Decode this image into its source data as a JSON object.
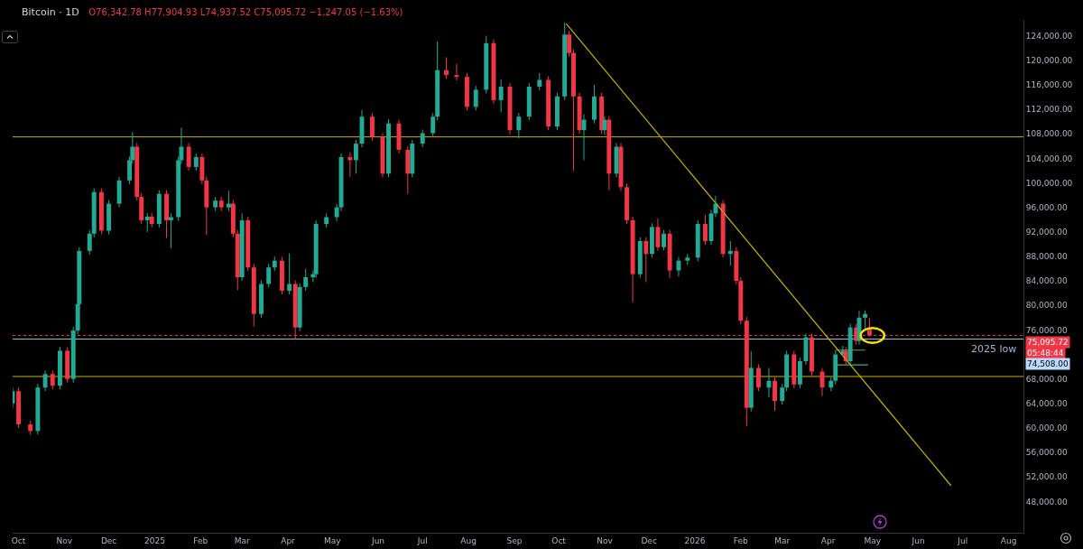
{
  "chart_data": {
    "type": "candlestick",
    "title": "Bitcoin · 1D",
    "subtitle": "O76,342.78 H77,904.93 L74,937.52 C75,095.72 −1,247.05 (−1.63%)",
    "colors": [
      "#22ab94",
      "#f23645",
      "#f23645",
      "#22ab94",
      "#22ab94",
      "#f23645",
      "#22ab94",
      "#f23645",
      "#22ab94",
      "#22ab94",
      "#22ab94",
      "#22ab94",
      "#22ab94",
      "#f23645",
      "#22ab94",
      "#22ab94",
      "#22ab94",
      "#22ab94",
      "#f23645",
      "#f23645",
      "#22ab94",
      "#f23645",
      "#22ab94",
      "#f23645",
      "#22ab94",
      "#22ab94",
      "#22ab94",
      "#f23645",
      "#22ab94",
      "#f23645",
      "#f23645",
      "#22ab94",
      "#f23645",
      "#22ab94",
      "#f23645",
      "#f23645",
      "#22ab94",
      "#f23645",
      "#f23645",
      "#22ab94",
      "#22ab94",
      "#22ab94",
      "#f23645",
      "#22ab94",
      "#f23645",
      "#22ab94",
      "#22ab94",
      "#22ab94",
      "#22ab94",
      "#22ab94",
      "#22ab94",
      "#22ab94",
      "#f23645",
      "#22ab94",
      "#22ab94",
      "#f23645",
      "#f23645",
      "#22ab94",
      "#f23645",
      "#f23645",
      "#22ab94",
      "#22ab94",
      "#22ab94",
      "#22ab94",
      "#f23645",
      "#f23645",
      "#f23645",
      "#22ab94",
      "#22ab94",
      "#f23645",
      "#22ab94",
      "#f23645",
      "#22ab94",
      "#22ab94",
      "#22ab94",
      "#f23645",
      "#22ab94",
      "#22ab94",
      "#f23645",
      "#f23645",
      "#f23645",
      "#22ab94",
      "#22ab94",
      "#f23645",
      "#22ab94",
      "#f23645",
      "#22ab94",
      "#f23645",
      "#f23645",
      "#f23645",
      "#22ab94",
      "#f23645",
      "#22ab94",
      "#f23645",
      "#22ab94",
      "#f23645",
      "#22ab94",
      "#22ab94",
      "#22ab94",
      "#f23645",
      "#22ab94",
      "#22ab94",
      "#f23645",
      "#22ab94",
      "#f23645",
      "#f23645",
      "#f23645",
      "#22ab94",
      "#f23645",
      "#22ab94",
      "#f23645",
      "#22ab94",
      "#22ab94",
      "#f23645",
      "#22ab94",
      "#22ab94",
      "#f23645",
      "#f23645",
      "#22ab94",
      "#22ab94",
      "#22ab94",
      "#f23645",
      "#22ab94",
      "#f23645",
      "#22ab94",
      "#22ab94",
      "#f23645"
    ],
    "x": [
      "2024-09-27",
      "2024-10-01",
      "2024-10-09",
      "2024-10-14",
      "2024-10-19",
      "2024-10-24",
      "2024-10-29",
      "2024-11-03",
      "2024-11-07",
      "2024-11-10",
      "2024-11-11",
      "2024-11-18",
      "2024-11-21",
      "2024-11-26",
      "2024-12-01",
      "2024-12-08",
      "2024-12-15",
      "2024-12-17",
      "2024-12-20",
      "2024-12-23",
      "2024-12-27",
      "2024-12-30",
      "2025-01-04",
      "2025-01-09",
      "2025-01-12",
      "2025-01-17",
      "2025-01-19",
      "2025-01-24",
      "2025-01-29",
      "2025-02-02",
      "2025-02-05",
      "2025-02-11",
      "2025-02-15",
      "2025-02-20",
      "2025-02-23",
      "2025-02-26",
      "2025-03-01",
      "2025-03-05",
      "2025-03-09",
      "2025-03-14",
      "2025-03-19",
      "2025-03-23",
      "2025-03-28",
      "2025-04-02",
      "2025-04-06",
      "2025-04-09",
      "2025-04-13",
      "2025-04-18",
      "2025-04-20",
      "2025-04-27",
      "2025-05-04",
      "2025-05-07",
      "2025-05-13",
      "2025-05-17",
      "2025-05-21",
      "2025-05-28",
      "2025-06-04",
      "2025-06-08",
      "2025-06-15",
      "2025-06-21",
      "2025-06-24",
      "2025-07-01",
      "2025-07-08",
      "2025-07-11",
      "2025-07-17",
      "2025-07-24",
      "2025-07-31",
      "2025-08-06",
      "2025-08-13",
      "2025-08-18",
      "2025-08-23",
      "2025-08-29",
      "2025-09-04",
      "2025-09-11",
      "2025-09-18",
      "2025-09-24",
      "2025-09-30",
      "2025-10-05",
      "2025-10-08",
      "2025-10-11",
      "2025-10-15",
      "2025-10-18",
      "2025-10-25",
      "2025-10-30",
      "2025-11-01",
      "2025-11-04",
      "2025-11-09",
      "2025-11-12",
      "2025-11-16",
      "2025-11-20",
      "2025-11-25",
      "2025-11-29",
      "2025-12-03",
      "2025-12-07",
      "2025-12-11",
      "2025-12-15",
      "2025-12-21",
      "2025-12-27",
      "2026-01-03",
      "2026-01-08",
      "2026-01-12",
      "2026-01-15",
      "2026-01-20",
      "2026-01-25",
      "2026-01-29",
      "2026-02-01",
      "2026-02-05",
      "2026-02-08",
      "2026-02-13",
      "2026-02-20",
      "2026-02-24",
      "2026-03-01",
      "2026-03-04",
      "2026-03-09",
      "2026-03-13",
      "2026-03-17",
      "2026-03-21",
      "2026-03-28",
      "2026-04-03",
      "2026-04-06",
      "2026-04-11",
      "2026-04-13",
      "2026-04-16",
      "2026-04-20",
      "2026-04-22",
      "2026-04-26",
      "2026-04-29"
    ],
    "ohlc": [
      [
        64000,
        66600,
        63200,
        66000
      ],
      [
        66000,
        66600,
        60000,
        60600
      ],
      [
        60600,
        61200,
        58900,
        59500
      ],
      [
        59500,
        67200,
        58900,
        66600
      ],
      [
        66600,
        69400,
        66000,
        68800
      ],
      [
        68800,
        69400,
        66300,
        66900
      ],
      [
        66900,
        73200,
        66300,
        72600
      ],
      [
        72600,
        73200,
        67400,
        68000
      ],
      [
        68000,
        76500,
        67400,
        75900
      ],
      [
        75900,
        80800,
        75300,
        80200
      ],
      [
        80200,
        89500,
        79600,
        88900
      ],
      [
        88900,
        92300,
        88300,
        91700
      ],
      [
        91700,
        99100,
        91100,
        98500
      ],
      [
        98500,
        99100,
        91600,
        92200
      ],
      [
        92200,
        97200,
        91600,
        96600
      ],
      [
        96600,
        101000,
        96000,
        100400
      ],
      [
        100400,
        104300,
        99800,
        103700
      ],
      [
        103700,
        108300,
        103100,
        105900
      ],
      [
        105900,
        106500,
        97100,
        97700
      ],
      [
        97700,
        98300,
        93300,
        93900
      ],
      [
        93900,
        95100,
        92000,
        94500
      ],
      [
        94500,
        95100,
        92700,
        93300
      ],
      [
        93300,
        98800,
        92700,
        98200
      ],
      [
        98200,
        98800,
        91000,
        93900
      ],
      [
        93900,
        95000,
        89300,
        94400
      ],
      [
        94400,
        104300,
        93800,
        103700
      ],
      [
        103700,
        109000,
        103100,
        105900
      ],
      [
        105900,
        106500,
        102000,
        102600
      ],
      [
        102600,
        104800,
        102000,
        104200
      ],
      [
        104200,
        104800,
        99800,
        100400
      ],
      [
        100400,
        101000,
        91500,
        96000
      ],
      [
        96000,
        97700,
        95400,
        97100
      ],
      [
        97100,
        97700,
        95400,
        96000
      ],
      [
        96000,
        98700,
        95400,
        96600
      ],
      [
        96600,
        97200,
        91100,
        91700
      ],
      [
        91700,
        92300,
        82500,
        84600
      ],
      [
        84600,
        95000,
        84000,
        93900
      ],
      [
        93900,
        94500,
        85600,
        86200
      ],
      [
        86200,
        86800,
        76600,
        78600
      ],
      [
        78600,
        84100,
        78000,
        83500
      ],
      [
        83500,
        86800,
        82900,
        86200
      ],
      [
        86200,
        88000,
        85600,
        87300
      ],
      [
        87300,
        87900,
        81800,
        82400
      ],
      [
        82400,
        88500,
        81800,
        83500
      ],
      [
        83500,
        84100,
        74500,
        76400
      ],
      [
        76400,
        83600,
        75800,
        83000
      ],
      [
        83000,
        86000,
        82400,
        84600
      ],
      [
        84600,
        85700,
        83800,
        85100
      ],
      [
        85100,
        93900,
        84500,
        93300
      ],
      [
        93300,
        95000,
        92700,
        94400
      ],
      [
        94400,
        96600,
        93800,
        96000
      ],
      [
        96000,
        104800,
        95400,
        104200
      ],
      [
        104200,
        105000,
        101000,
        103700
      ],
      [
        103700,
        107000,
        101500,
        106400
      ],
      [
        106400,
        111900,
        105800,
        110800
      ],
      [
        110800,
        111400,
        106900,
        107500
      ],
      [
        107500,
        108100,
        100900,
        101500
      ],
      [
        101500,
        110400,
        100900,
        109700
      ],
      [
        109700,
        110300,
        104800,
        105400
      ],
      [
        105400,
        106000,
        98200,
        101500
      ],
      [
        101500,
        107000,
        100900,
        106400
      ],
      [
        106400,
        108700,
        105800,
        108100
      ],
      [
        108100,
        111400,
        107500,
        110800
      ],
      [
        110800,
        123100,
        110200,
        118400
      ],
      [
        118400,
        120500,
        117000,
        117600
      ],
      [
        117600,
        119400,
        116700,
        117300
      ],
      [
        117300,
        117900,
        111800,
        112400
      ],
      [
        112400,
        115800,
        111800,
        115200
      ],
      [
        115200,
        124000,
        114600,
        122800
      ],
      [
        122800,
        123400,
        112900,
        113500
      ],
      [
        113500,
        116900,
        111500,
        115700
      ],
      [
        115700,
        116300,
        107900,
        108600
      ],
      [
        108600,
        111400,
        107300,
        110800
      ],
      [
        110800,
        116300,
        110200,
        115700
      ],
      [
        115700,
        117900,
        115100,
        116800
      ],
      [
        116800,
        117400,
        108600,
        109200
      ],
      [
        109200,
        114700,
        108600,
        114100
      ],
      [
        114100,
        126100,
        113500,
        124200
      ],
      [
        124200,
        124800,
        120600,
        121200
      ],
      [
        121200,
        121800,
        102000,
        114100
      ],
      [
        114100,
        114700,
        108000,
        108600
      ],
      [
        108600,
        111200,
        103700,
        110300
      ],
      [
        110300,
        116000,
        109700,
        114100
      ],
      [
        114100,
        114700,
        108000,
        108600
      ],
      [
        108600,
        110900,
        107800,
        110300
      ],
      [
        110300,
        110900,
        98800,
        101500
      ],
      [
        101500,
        106500,
        100900,
        105900
      ],
      [
        105900,
        106500,
        98700,
        99300
      ],
      [
        99300,
        99900,
        93300,
        93900
      ],
      [
        93900,
        94500,
        80500,
        85100
      ],
      [
        85100,
        91100,
        84500,
        90500
      ],
      [
        90500,
        91100,
        83800,
        88400
      ],
      [
        88400,
        93400,
        87800,
        92800
      ],
      [
        92800,
        94200,
        88900,
        89500
      ],
      [
        89500,
        92300,
        89000,
        91700
      ],
      [
        91700,
        92300,
        84500,
        85700
      ],
      [
        85700,
        87900,
        84700,
        87300
      ],
      [
        87300,
        88400,
        86600,
        87800
      ],
      [
        87800,
        93900,
        87200,
        93300
      ],
      [
        93300,
        94800,
        89900,
        90500
      ],
      [
        90500,
        95600,
        89900,
        95000
      ],
      [
        95000,
        97900,
        94400,
        96600
      ],
      [
        96600,
        97200,
        87800,
        88400
      ],
      [
        88400,
        90500,
        86500,
        88900
      ],
      [
        88900,
        89500,
        83400,
        84000
      ],
      [
        84000,
        84600,
        76900,
        77500
      ],
      [
        77500,
        78100,
        60300,
        63300
      ],
      [
        63300,
        72500,
        62700,
        69800
      ],
      [
        69800,
        70400,
        66000,
        66600
      ],
      [
        66600,
        69800,
        65000,
        67700
      ],
      [
        67700,
        68300,
        62800,
        64400
      ],
      [
        64400,
        67200,
        63800,
        66600
      ],
      [
        66600,
        72600,
        66000,
        72000
      ],
      [
        72000,
        72600,
        66500,
        67100
      ],
      [
        67100,
        71500,
        66500,
        70900
      ],
      [
        70900,
        75400,
        70300,
        74800
      ],
      [
        74800,
        75400,
        68600,
        69200
      ],
      [
        69200,
        69800,
        65200,
        66600
      ],
      [
        66600,
        68300,
        66000,
        67700
      ],
      [
        67700,
        72600,
        67100,
        72000
      ],
      [
        72000,
        73400,
        71600,
        72600
      ],
      [
        72600,
        73200,
        70300,
        70900
      ],
      [
        70900,
        77000,
        70300,
        76400
      ],
      [
        76400,
        77000,
        73600,
        74200
      ],
      [
        74200,
        79100,
        73600,
        78000
      ],
      [
        78000,
        79200,
        76000,
        78600
      ],
      [
        76342.78,
        77904.93,
        74937.52,
        75095.72
      ]
    ],
    "series": [
      {
        "type": "line",
        "color": "#c8b400",
        "x": [
          "2025-10-06",
          "2026-06-23"
        ],
        "values": [
          126000,
          50600
        ]
      },
      {
        "type": "line",
        "color": "#4caf50",
        "x": [
          "2026-04-06",
          "2026-04-26"
        ],
        "values": [
          72700,
          72700
        ]
      },
      {
        "type": "line",
        "color": "#4caf50",
        "x": [
          "2026-04-07",
          "2026-04-28"
        ],
        "values": [
          70300,
          70300
        ]
      }
    ],
    "ref_lines": [
      {
        "axis": "y",
        "value": 107500,
        "color": "#c8b400"
      },
      {
        "axis": "y",
        "value": 68400,
        "color": "#c8b400"
      },
      {
        "axis": "y",
        "value": 74508,
        "label": "2025 low",
        "color": "#9fb4d6"
      },
      {
        "axis": "y",
        "value": 75095.72,
        "color": "#f23645",
        "line_style": "dotted"
      }
    ],
    "annotations": [
      "75,095.72",
      "05:48:44",
      "74,508.00"
    ],
    "xlim": [
      "2024-09-27",
      "2026-08-11"
    ],
    "xticks": [
      {
        "value": "2024-10-01",
        "label": "Oct"
      },
      {
        "value": "2024-11-01",
        "label": "Nov"
      },
      {
        "value": "2024-12-01",
        "label": "Dec"
      },
      {
        "value": "2025-01-01",
        "label": "2025"
      },
      {
        "value": "2025-02-01",
        "label": "Feb"
      },
      {
        "value": "2025-03-01",
        "label": "Mar"
      },
      {
        "value": "2025-04-01",
        "label": "Apr"
      },
      {
        "value": "2025-05-01",
        "label": "May"
      },
      {
        "value": "2025-06-01",
        "label": "Jun"
      },
      {
        "value": "2025-07-01",
        "label": "Jul"
      },
      {
        "value": "2025-08-01",
        "label": "Aug"
      },
      {
        "value": "2025-09-01",
        "label": "Sep"
      },
      {
        "value": "2025-10-01",
        "label": "Oct"
      },
      {
        "value": "2025-11-01",
        "label": "Nov"
      },
      {
        "value": "2025-12-01",
        "label": "Dec"
      },
      {
        "value": "2026-01-01",
        "label": "2026"
      },
      {
        "value": "2026-02-01",
        "label": "Feb"
      },
      {
        "value": "2026-03-01",
        "label": "Mar"
      },
      {
        "value": "2026-04-01",
        "label": "Apr"
      },
      {
        "value": "2026-05-01",
        "label": "May"
      },
      {
        "value": "2026-06-01",
        "label": "Jun"
      },
      {
        "value": "2026-07-01",
        "label": "Jul"
      },
      {
        "value": "2026-08-01",
        "label": "Aug"
      }
    ],
    "ylim": [
      42900,
      126600
    ],
    "yticks": [
      {
        "value": 48000,
        "label": "48,000.00"
      },
      {
        "value": 52000,
        "label": "52,000.00"
      },
      {
        "value": 56000,
        "label": "56,000.00"
      },
      {
        "value": 60000,
        "label": "60,000.00"
      },
      {
        "value": 64000,
        "label": "64,000.00"
      },
      {
        "value": 68000,
        "label": "68,000.00"
      },
      {
        "value": 76000,
        "label": "76,000.00"
      },
      {
        "value": 80000,
        "label": "80,000.00"
      },
      {
        "value": 84000,
        "label": "84,000.00"
      },
      {
        "value": 88000,
        "label": "88,000.00"
      },
      {
        "value": 92000,
        "label": "92,000.00"
      },
      {
        "value": 96000,
        "label": "96,000.00"
      },
      {
        "value": 100000,
        "label": "100,000.00"
      },
      {
        "value": 104000,
        "label": "104,000.00"
      },
      {
        "value": 108000,
        "label": "108,000.00"
      },
      {
        "value": 112000,
        "label": "112,000.00"
      },
      {
        "value": 116000,
        "label": "116,000.00"
      },
      {
        "value": 120000,
        "label": "120,000.00"
      },
      {
        "value": 124000,
        "label": "124,000.00"
      }
    ],
    "grid": false
  }
}
